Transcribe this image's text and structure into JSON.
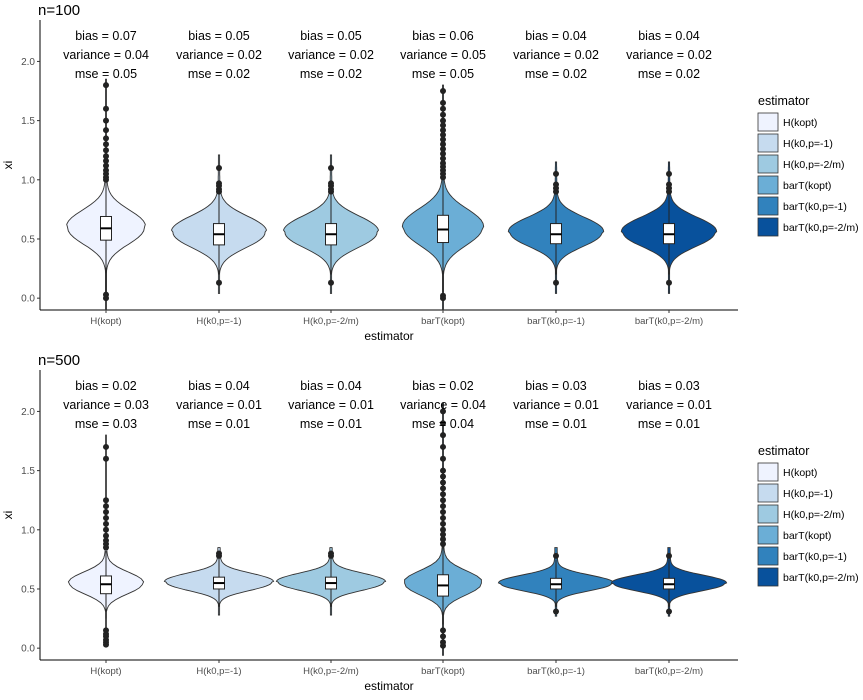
{
  "figure": {
    "y_axis_label": "xi",
    "x_axis_label": "estimator",
    "legend_title": "estimator"
  },
  "colors": {
    "H(kopt)": "#eff3ff",
    "H(k0,p=-1)": "#c6dbef",
    "H(k0,p=-2/m)": "#9ecae1",
    "barT(kopt)": "#6baed6",
    "barT(k0,p=-1)": "#3182bd",
    "barT(k0,p=-2/m)": "#08519c"
  },
  "chart_data": [
    {
      "type": "violin",
      "title": "n=100",
      "xlabel": "estimator",
      "ylabel": "xi",
      "ylim": [
        -0.1,
        2.35
      ],
      "yticks": [
        0.0,
        0.5,
        1.0,
        1.5,
        2.0
      ],
      "ytick_labels": [
        "0.0",
        "0.5",
        "1.0",
        "1.5",
        "2.0"
      ],
      "categories": [
        "H(kopt)",
        "H(k0,p=-1)",
        "H(k0,p=-2/m)",
        "barT(kopt)",
        "barT(k0,p=-1)",
        "barT(k0,p=-2/m)"
      ],
      "legend": [
        "H(kopt)",
        "H(k0,p=-1)",
        "H(k0,p=-2/m)",
        "barT(kopt)",
        "barT(k0,p=-1)",
        "barT(k0,p=-2/m)"
      ],
      "series": [
        {
          "name": "H(kopt)",
          "bias": "bias = 0.07",
          "variance": "variance = 0.04",
          "mse": "mse = 0.05",
          "min": -0.1,
          "max": 1.85,
          "q1": 0.49,
          "median": 0.59,
          "q3": 0.69,
          "whisker_low": 0.05,
          "whisker_high": 0.98,
          "mode": 0.6,
          "halfwidth": 0.4,
          "spread": 0.14,
          "outliers": [
            1.0,
            1.02,
            1.05,
            1.08,
            1.12,
            1.16,
            1.2,
            1.25,
            1.3,
            1.35,
            1.42,
            1.5,
            1.6,
            1.8,
            0.03,
            0.0
          ]
        },
        {
          "name": "H(k0,p=-1)",
          "bias": "bias = 0.05",
          "variance": "variance = 0.02",
          "mse": "mse = 0.02",
          "min": 0.04,
          "max": 1.21,
          "q1": 0.45,
          "median": 0.54,
          "q3": 0.63,
          "whisker_low": 0.2,
          "whisker_high": 0.88,
          "mode": 0.56,
          "halfwidth": 0.48,
          "spread": 0.13,
          "outliers": [
            0.9,
            0.92,
            0.95,
            0.97,
            1.1,
            0.13
          ]
        },
        {
          "name": "H(k0,p=-2/m)",
          "bias": "bias = 0.05",
          "variance": "variance = 0.02",
          "mse": "mse = 0.02",
          "min": 0.04,
          "max": 1.21,
          "q1": 0.45,
          "median": 0.54,
          "q3": 0.63,
          "whisker_low": 0.2,
          "whisker_high": 0.88,
          "mode": 0.56,
          "halfwidth": 0.48,
          "spread": 0.13,
          "outliers": [
            0.9,
            0.92,
            0.95,
            0.97,
            1.1,
            0.13
          ]
        },
        {
          "name": "barT(kopt)",
          "bias": "bias = 0.06",
          "variance": "variance = 0.05",
          "mse": "mse = 0.05",
          "min": -0.1,
          "max": 1.8,
          "q1": 0.47,
          "median": 0.58,
          "q3": 0.7,
          "whisker_low": 0.05,
          "whisker_high": 1.0,
          "mode": 0.6,
          "halfwidth": 0.41,
          "spread": 0.15,
          "outliers": [
            1.02,
            1.05,
            1.08,
            1.11,
            1.14,
            1.18,
            1.22,
            1.26,
            1.3,
            1.34,
            1.38,
            1.42,
            1.46,
            1.5,
            1.55,
            1.6,
            1.65,
            1.75,
            0.02,
            0.0
          ]
        },
        {
          "name": "barT(k0,p=-1)",
          "bias": "bias = 0.04",
          "variance": "variance = 0.02",
          "mse": "mse = 0.02",
          "min": 0.04,
          "max": 1.15,
          "q1": 0.46,
          "median": 0.54,
          "q3": 0.63,
          "whisker_low": 0.2,
          "whisker_high": 0.88,
          "mode": 0.56,
          "halfwidth": 0.48,
          "spread": 0.12,
          "outliers": [
            0.9,
            0.93,
            0.96,
            1.05,
            0.13
          ]
        },
        {
          "name": "barT(k0,p=-2/m)",
          "bias": "bias = 0.04",
          "variance": "variance = 0.02",
          "mse": "mse = 0.02",
          "min": 0.04,
          "max": 1.15,
          "q1": 0.46,
          "median": 0.54,
          "q3": 0.63,
          "whisker_low": 0.2,
          "whisker_high": 0.88,
          "mode": 0.56,
          "halfwidth": 0.48,
          "spread": 0.12,
          "outliers": [
            0.9,
            0.93,
            0.96,
            1.05,
            0.13
          ]
        }
      ]
    },
    {
      "type": "violin",
      "title": "n=500",
      "xlabel": "estimator",
      "ylabel": "xi",
      "ylim": [
        -0.1,
        2.35
      ],
      "yticks": [
        0.0,
        0.5,
        1.0,
        1.5,
        2.0
      ],
      "ytick_labels": [
        "0.0",
        "0.5",
        "1.0",
        "1.5",
        "2.0"
      ],
      "categories": [
        "H(kopt)",
        "H(k0,p=-1)",
        "H(k0,p=-2/m)",
        "barT(kopt)",
        "barT(k0,p=-1)",
        "barT(k0,p=-2/m)"
      ],
      "legend": [
        "H(kopt)",
        "H(k0,p=-1)",
        "H(k0,p=-2/m)",
        "barT(kopt)",
        "barT(k0,p=-1)",
        "barT(k0,p=-2/m)"
      ],
      "series": [
        {
          "name": "H(kopt)",
          "bias": "bias = 0.02",
          "variance": "variance = 0.03",
          "mse": "mse = 0.03",
          "min": 0.03,
          "max": 1.8,
          "q1": 0.46,
          "median": 0.54,
          "q3": 0.61,
          "whisker_low": 0.25,
          "whisker_high": 0.82,
          "mode": 0.55,
          "halfwidth": 0.38,
          "spread": 0.09,
          "outliers": [
            0.85,
            0.88,
            0.91,
            0.95,
            1.0,
            1.05,
            1.1,
            1.15,
            1.2,
            1.25,
            1.6,
            1.7,
            0.15,
            0.12,
            0.1,
            0.07,
            0.05,
            0.03
          ]
        },
        {
          "name": "H(k0,p=-1)",
          "bias": "bias = 0.04",
          "variance": "variance = 0.01",
          "mse": "mse = 0.01",
          "min": 0.28,
          "max": 0.85,
          "q1": 0.5,
          "median": 0.55,
          "q3": 0.6,
          "whisker_low": 0.35,
          "whisker_high": 0.76,
          "mode": 0.56,
          "halfwidth": 0.55,
          "spread": 0.07,
          "outliers": [
            0.78,
            0.8
          ]
        },
        {
          "name": "H(k0,p=-2/m)",
          "bias": "bias = 0.04",
          "variance": "variance = 0.01",
          "mse": "mse = 0.01",
          "min": 0.28,
          "max": 0.85,
          "q1": 0.5,
          "median": 0.55,
          "q3": 0.6,
          "whisker_low": 0.35,
          "whisker_high": 0.76,
          "mode": 0.56,
          "halfwidth": 0.55,
          "spread": 0.07,
          "outliers": [
            0.78,
            0.8
          ]
        },
        {
          "name": "barT(kopt)",
          "bias": "bias = 0.02",
          "variance": "variance = 0.04",
          "mse": "mse = 0.04",
          "min": -0.06,
          "max": 2.07,
          "q1": 0.44,
          "median": 0.53,
          "q3": 0.62,
          "whisker_low": 0.2,
          "whisker_high": 0.86,
          "mode": 0.55,
          "halfwidth": 0.4,
          "spread": 0.1,
          "outliers": [
            0.88,
            0.92,
            0.96,
            1.0,
            1.05,
            1.1,
            1.15,
            1.2,
            1.25,
            1.3,
            1.35,
            1.4,
            1.45,
            1.5,
            1.6,
            1.7,
            1.8,
            1.9,
            2.0,
            0.15,
            0.1,
            0.05,
            0.02
          ]
        },
        {
          "name": "barT(k0,p=-1)",
          "bias": "bias = 0.03",
          "variance": "variance = 0.01",
          "mse": "mse = 0.01",
          "min": 0.27,
          "max": 0.85,
          "q1": 0.5,
          "median": 0.54,
          "q3": 0.59,
          "whisker_low": 0.35,
          "whisker_high": 0.75,
          "mode": 0.55,
          "halfwidth": 0.58,
          "spread": 0.065,
          "outliers": [
            0.78,
            0.31
          ]
        },
        {
          "name": "barT(k0,p=-2/m)",
          "bias": "bias = 0.03",
          "variance": "variance = 0.01",
          "mse": "mse = 0.01",
          "min": 0.27,
          "max": 0.85,
          "q1": 0.5,
          "median": 0.54,
          "q3": 0.59,
          "whisker_low": 0.35,
          "whisker_high": 0.75,
          "mode": 0.55,
          "halfwidth": 0.58,
          "spread": 0.065,
          "outliers": [
            0.78,
            0.31
          ]
        }
      ]
    }
  ]
}
